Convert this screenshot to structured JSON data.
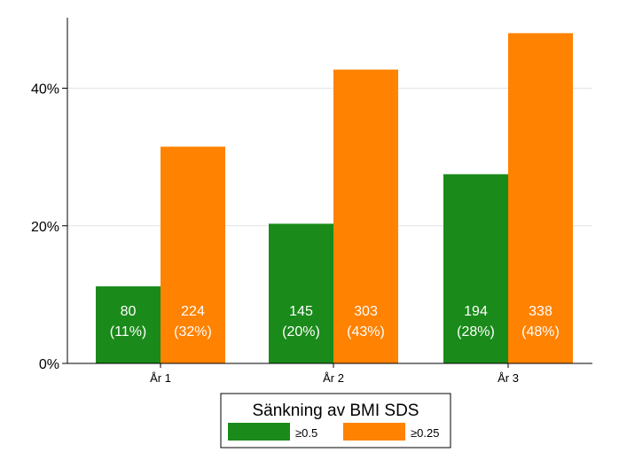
{
  "chart_data": {
    "type": "bar",
    "categories": [
      "År 1",
      "År 2",
      "År 3"
    ],
    "series": [
      {
        "name": "≥0.5",
        "color": "#1a8a1a",
        "values": [
          11.2,
          20.3,
          27.5
        ],
        "count_labels": [
          "80",
          "145",
          "194"
        ],
        "pct_labels": [
          "(11%)",
          "(20%)",
          "(28%)"
        ]
      },
      {
        "name": "≥0.25",
        "color": "#ff8200",
        "values": [
          31.5,
          42.7,
          48.0
        ],
        "count_labels": [
          "224",
          "303",
          "338"
        ],
        "pct_labels": [
          "(32%)",
          "(43%)",
          "(48%)"
        ]
      }
    ],
    "ylim": [
      0,
      50
    ],
    "yticks": [
      0,
      20,
      40
    ],
    "ytick_labels": [
      "0%",
      "20%",
      "40%"
    ],
    "xlabel": "",
    "ylabel": "",
    "legend_title": "Sänkning av BMI SDS",
    "legend_position": "bottom",
    "grid": true,
    "colors": {
      "grid": "#e3e3e3",
      "axis": "#000000",
      "label_text": "#ffffff"
    }
  }
}
